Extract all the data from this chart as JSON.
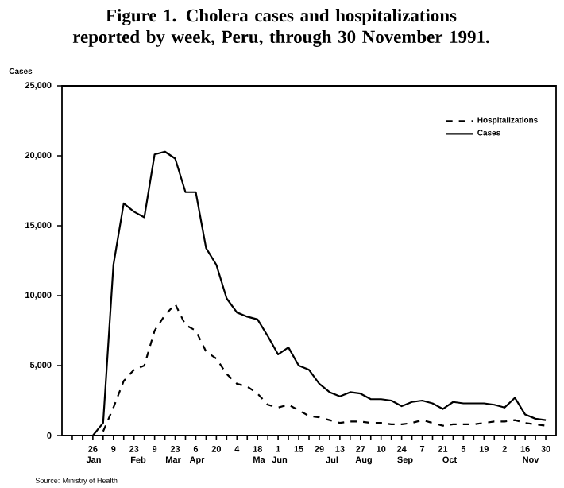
{
  "chart_data": {
    "type": "line",
    "title": "Figure 1. Cholera cases and hospitalizations reported by week, Peru, through 30 November 1991.",
    "ylabel": "Cases",
    "x": [
      "1991-01-05",
      "1991-01-12",
      "1991-01-19",
      "1991-01-26",
      "1991-02-02",
      "1991-02-09",
      "1991-02-16",
      "1991-02-23",
      "1991-03-02",
      "1991-03-09",
      "1991-03-16",
      "1991-03-23",
      "1991-03-30",
      "1991-04-06",
      "1991-04-13",
      "1991-04-20",
      "1991-04-27",
      "1991-05-04",
      "1991-05-11",
      "1991-05-18",
      "1991-05-25",
      "1991-06-01",
      "1991-06-08",
      "1991-06-15",
      "1991-06-22",
      "1991-06-29",
      "1991-07-06",
      "1991-07-13",
      "1991-07-20",
      "1991-07-27",
      "1991-08-03",
      "1991-08-10",
      "1991-08-17",
      "1991-08-24",
      "1991-08-31",
      "1991-09-07",
      "1991-09-14",
      "1991-09-21",
      "1991-09-28",
      "1991-10-05",
      "1991-10-12",
      "1991-10-19",
      "1991-10-26",
      "1991-11-02",
      "1991-11-09",
      "1991-11-16",
      "1991-11-23",
      "1991-11-30"
    ],
    "series": [
      {
        "name": "Hospitalizations",
        "color": "#000000",
        "line_style": "dashed",
        "values": [
          null,
          null,
          null,
          null,
          300,
          2000,
          3900,
          4700,
          5000,
          7500,
          8600,
          9400,
          7900,
          7500,
          6000,
          5500,
          4400,
          3700,
          3500,
          3000,
          2200,
          2000,
          2200,
          1800,
          1400,
          1300,
          1100,
          900,
          1000,
          1000,
          900,
          900,
          800,
          800,
          900,
          1100,
          900,
          700,
          800,
          800,
          800,
          900,
          1000,
          1000,
          1100,
          900,
          800,
          700
        ]
      },
      {
        "name": "Cases",
        "color": "#000000",
        "line_style": "solid",
        "values": [
          0,
          0,
          0,
          0,
          900,
          12200,
          16600,
          16000,
          15600,
          20100,
          20300,
          19800,
          17400,
          17400,
          13400,
          12200,
          9800,
          8800,
          8500,
          8300,
          7100,
          5800,
          6300,
          5000,
          4700,
          3700,
          3100,
          2800,
          3100,
          3000,
          2600,
          2600,
          2500,
          2100,
          2400,
          2500,
          2300,
          1900,
          2400,
          2300,
          2300,
          2300,
          2200,
          2000,
          2700,
          1500,
          1200,
          1100
        ]
      }
    ],
    "xlim": [
      "1991-01-05",
      "1991-12-07"
    ],
    "xticks": [
      {
        "value": "1991-01-12",
        "label": null
      },
      {
        "value": "1991-01-19",
        "label": null
      },
      {
        "value": "1991-01-26",
        "label": "26"
      },
      {
        "value": "1991-02-02",
        "label": null
      },
      {
        "value": "1991-02-09",
        "label": "9"
      },
      {
        "value": "1991-02-16",
        "label": null
      },
      {
        "value": "1991-02-23",
        "label": "23"
      },
      {
        "value": "1991-03-02",
        "label": null
      },
      {
        "value": "1991-03-09",
        "label": "9"
      },
      {
        "value": "1991-03-16",
        "label": null
      },
      {
        "value": "1991-03-23",
        "label": "23"
      },
      {
        "value": "1991-03-30",
        "label": null
      },
      {
        "value": "1991-04-06",
        "label": "6"
      },
      {
        "value": "1991-04-13",
        "label": null
      },
      {
        "value": "1991-04-20",
        "label": "20"
      },
      {
        "value": "1991-04-27",
        "label": null
      },
      {
        "value": "1991-05-04",
        "label": "4"
      },
      {
        "value": "1991-05-11",
        "label": null
      },
      {
        "value": "1991-05-18",
        "label": "18"
      },
      {
        "value": "1991-05-25",
        "label": null
      },
      {
        "value": "1991-06-01",
        "label": "1"
      },
      {
        "value": "1991-06-08",
        "label": null
      },
      {
        "value": "1991-06-15",
        "label": "15"
      },
      {
        "value": "1991-06-22",
        "label": null
      },
      {
        "value": "1991-06-29",
        "label": "29"
      },
      {
        "value": "1991-07-06",
        "label": null
      },
      {
        "value": "1991-07-13",
        "label": "13"
      },
      {
        "value": "1991-07-20",
        "label": null
      },
      {
        "value": "1991-07-27",
        "label": "27"
      },
      {
        "value": "1991-08-03",
        "label": null
      },
      {
        "value": "1991-08-10",
        "label": "10"
      },
      {
        "value": "1991-08-17",
        "label": null
      },
      {
        "value": "1991-08-24",
        "label": "24"
      },
      {
        "value": "1991-08-31",
        "label": null
      },
      {
        "value": "1991-09-07",
        "label": "7"
      },
      {
        "value": "1991-09-14",
        "label": null
      },
      {
        "value": "1991-09-21",
        "label": "21"
      },
      {
        "value": "1991-09-28",
        "label": null
      },
      {
        "value": "1991-10-05",
        "label": "5"
      },
      {
        "value": "1991-10-12",
        "label": null
      },
      {
        "value": "1991-10-19",
        "label": "19"
      },
      {
        "value": "1991-10-26",
        "label": null
      },
      {
        "value": "1991-11-02",
        "label": "2"
      },
      {
        "value": "1991-11-09",
        "label": null
      },
      {
        "value": "1991-11-16",
        "label": "16"
      },
      {
        "value": "1991-11-23",
        "label": null
      },
      {
        "value": "1991-11-30",
        "label": "30"
      }
    ],
    "ylim": [
      0,
      25000
    ],
    "yticks": [
      0,
      {
        "value": 5000,
        "label": "5,000"
      },
      {
        "value": 10000,
        "label": "10,000"
      },
      {
        "value": 15000,
        "label": "15,000"
      },
      {
        "value": 20000,
        "label": "20,000"
      },
      {
        "value": 25000,
        "label": "25,000"
      }
    ],
    "grid": false,
    "legend": "top right",
    "annotations": [
      "Jan",
      "Feb",
      "Mar",
      "Apr",
      "Ma",
      "Jun",
      "Jul",
      "Aug",
      "Sep",
      "Oct",
      "Nov",
      "Source: Ministry of Health"
    ]
  }
}
